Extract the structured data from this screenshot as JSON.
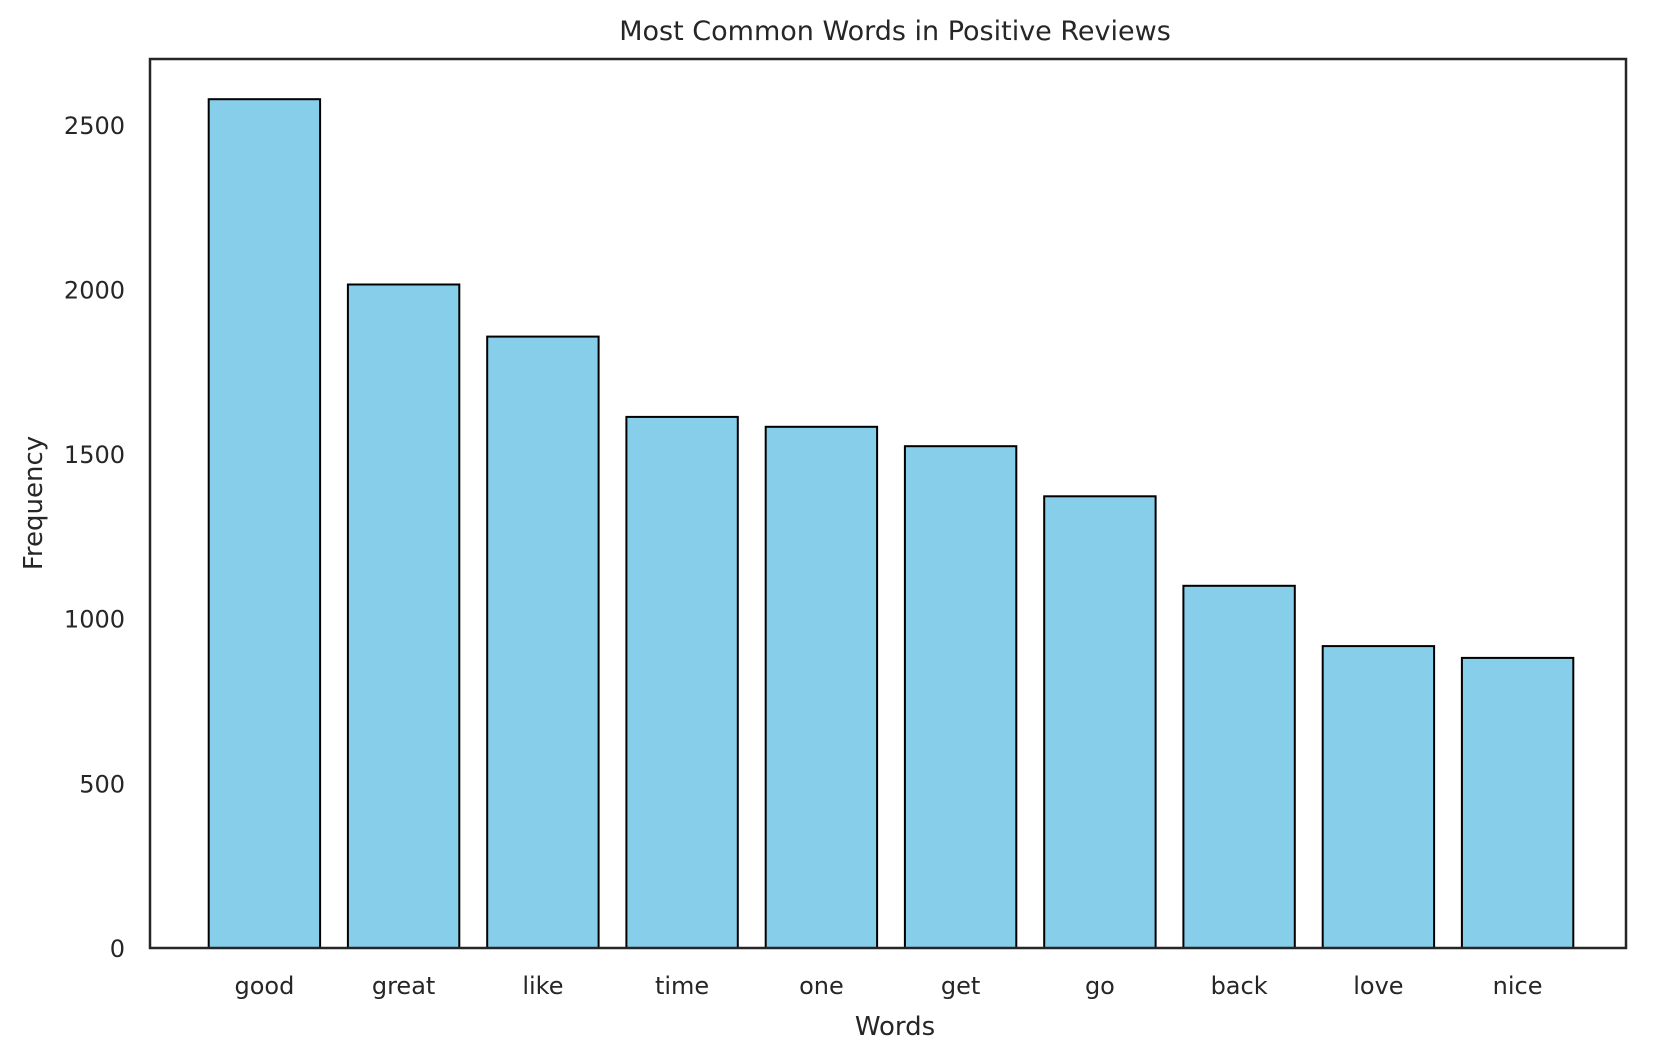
{
  "chart_data": {
    "type": "bar",
    "title": "Most Common Words in Positive Reviews",
    "xlabel": "Words",
    "ylabel": "Frequency",
    "categories": [
      "good",
      "great",
      "like",
      "time",
      "one",
      "get",
      "go",
      "back",
      "love",
      "nice"
    ],
    "values": [
      2578,
      2015,
      1857,
      1613,
      1583,
      1524,
      1372,
      1100,
      917,
      881
    ],
    "ylim": [
      0,
      2700
    ],
    "yticks": [
      0,
      500,
      1000,
      1500,
      2000,
      2500
    ],
    "grid": false,
    "legend": "none",
    "colors": {
      "bar_fill": "#87CEEB",
      "bar_edge": "#000000",
      "axes_frame": "#262626",
      "text": "#262626"
    }
  }
}
